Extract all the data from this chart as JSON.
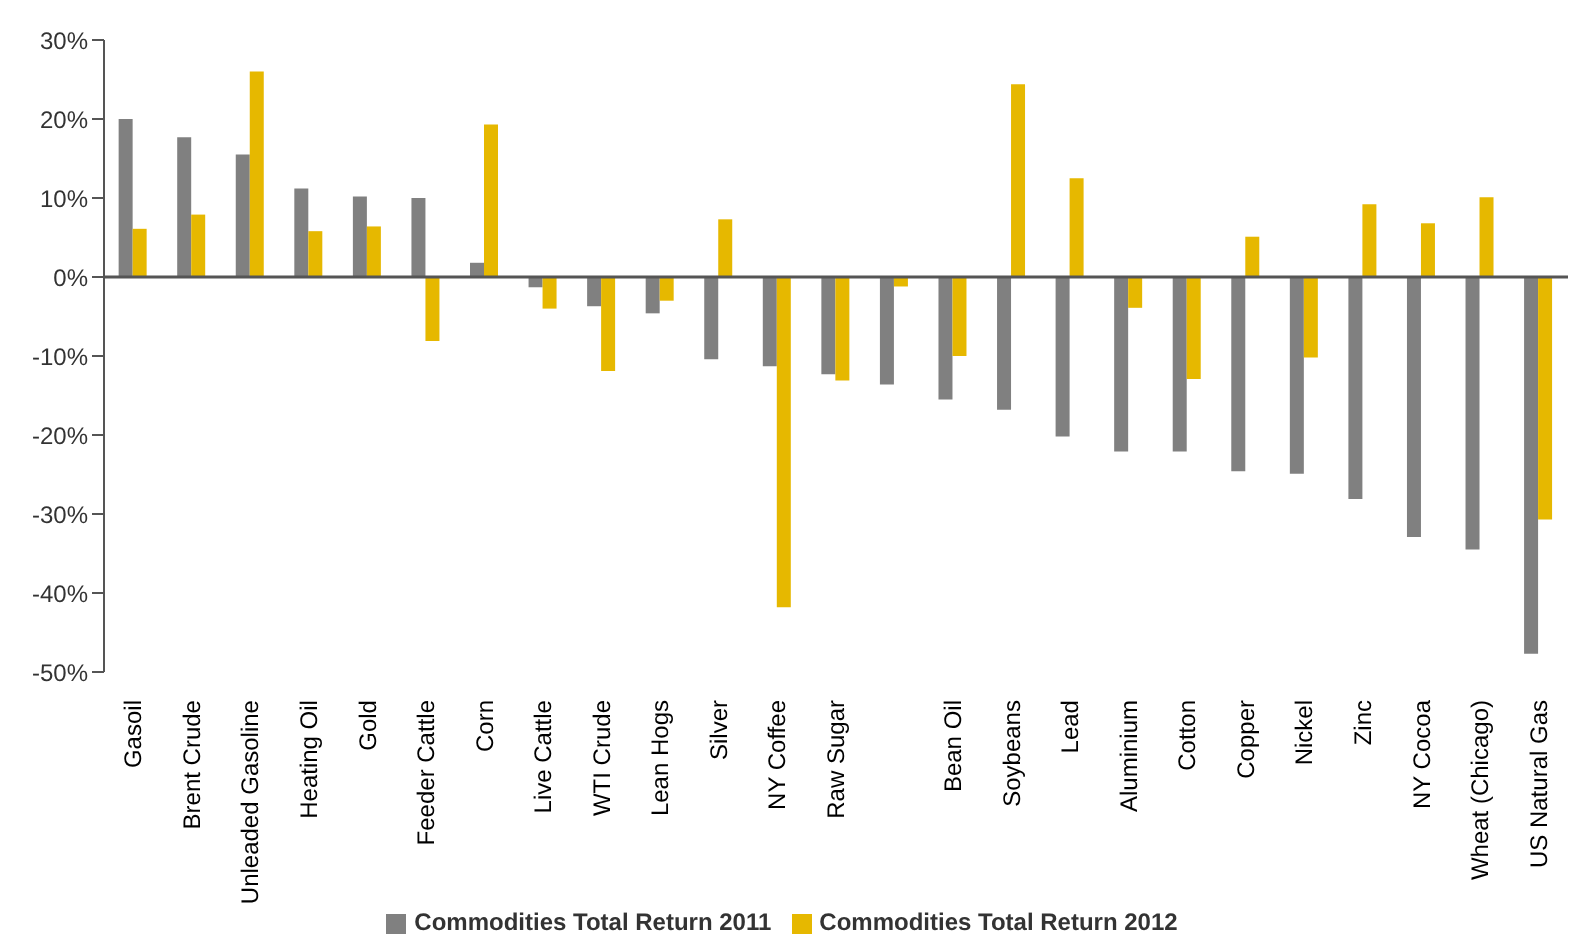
{
  "chart_data": {
    "type": "bar",
    "categories": [
      "Gasoil",
      "Brent Crude",
      "Unleaded Gasoline",
      "Heating Oil",
      "Gold",
      "Feeder Cattle",
      "Corn",
      "Live Cattle",
      "WTI Crude",
      "Lean Hogs",
      "Silver",
      "NY Coffee",
      "Raw Sugar",
      null,
      "Bean Oil",
      "Soybeans",
      "Lead",
      "Aluminium",
      "Cotton",
      "Copper",
      "Nickel",
      "Zinc",
      "NY Cocoa",
      "Wheat (Chicago)",
      "US Natural Gas"
    ],
    "series": [
      {
        "name": "Commodities Total Return 2011",
        "color": "#808080",
        "values": [
          20,
          17.7,
          15.5,
          11.2,
          10.2,
          10,
          1.8,
          -1.3,
          -3.7,
          -4.6,
          -10.4,
          -11.3,
          -12.3,
          -13.6,
          -15.5,
          -16.8,
          -20.2,
          -22.1,
          -22.1,
          -24.6,
          -24.9,
          -28.1,
          -32.9,
          -34.5,
          -47.7
        ]
      },
      {
        "name": "Commodities Total Return 2012",
        "color": "#e6b800",
        "values": [
          6.1,
          7.9,
          26,
          5.8,
          6.4,
          -8.1,
          19.3,
          -4,
          -11.9,
          -3,
          7.3,
          -41.8,
          -13.1,
          -1.2,
          -10,
          24.4,
          12.5,
          -3.9,
          -12.9,
          5.1,
          -10.2,
          9.2,
          6.8,
          10.1,
          -30.7
        ]
      }
    ],
    "ylim": [
      -50,
      30
    ],
    "yticks": [
      {
        "value": -50,
        "label": "-50%"
      },
      {
        "value": -40,
        "label": "-40%"
      },
      {
        "value": -30,
        "label": "-30%"
      },
      {
        "value": -20,
        "label": "-20%"
      },
      {
        "value": -10,
        "label": "-10%"
      },
      {
        "value": 0,
        "label": "0%"
      },
      {
        "value": 10,
        "label": "10%"
      },
      {
        "value": 20,
        "label": "20%"
      },
      {
        "value": 30,
        "label": "30%"
      }
    ],
    "grid": false,
    "ref_lines": [
      {
        "axis": "y",
        "value": 0,
        "color": "#555555"
      }
    ],
    "legend": "bottom"
  }
}
